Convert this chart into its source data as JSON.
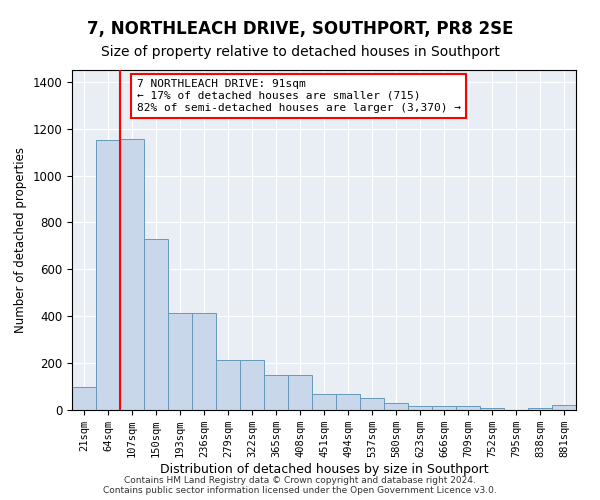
{
  "title": "7, NORTHLEACH DRIVE, SOUTHPORT, PR8 2SE",
  "subtitle": "Size of property relative to detached houses in Southport",
  "xlabel": "Distribution of detached houses by size in Southport",
  "ylabel": "Number of detached properties",
  "categories": [
    "21sqm",
    "64sqm",
    "107sqm",
    "150sqm",
    "193sqm",
    "236sqm",
    "279sqm",
    "322sqm",
    "365sqm",
    "408sqm",
    "451sqm",
    "494sqm",
    "537sqm",
    "580sqm",
    "623sqm",
    "666sqm",
    "709sqm",
    "752sqm",
    "795sqm",
    "838sqm",
    "881sqm"
  ],
  "values": [
    100,
    1150,
    1155,
    730,
    415,
    415,
    215,
    215,
    150,
    150,
    68,
    68,
    50,
    30,
    18,
    18,
    18,
    10,
    0,
    10,
    20
  ],
  "bar_color": "#c8d8ea",
  "bar_edge_color": "#6699bb",
  "red_line_x": 1.5,
  "annotation_text": "7 NORTHLEACH DRIVE: 91sqm\n← 17% of detached houses are smaller (715)\n82% of semi-detached houses are larger (3,370) →",
  "ylim": [
    0,
    1450
  ],
  "yticks": [
    0,
    200,
    400,
    600,
    800,
    1000,
    1200,
    1400
  ],
  "background_color": "#e8eef4",
  "footer": "Contains HM Land Registry data © Crown copyright and database right 2024.\nContains public sector information licensed under the Open Government Licence v3.0.",
  "title_fontsize": 12,
  "subtitle_fontsize": 10,
  "xlabel_fontsize": 9,
  "ylabel_fontsize": 8.5,
  "tick_fontsize": 7.5,
  "footer_fontsize": 6.5
}
